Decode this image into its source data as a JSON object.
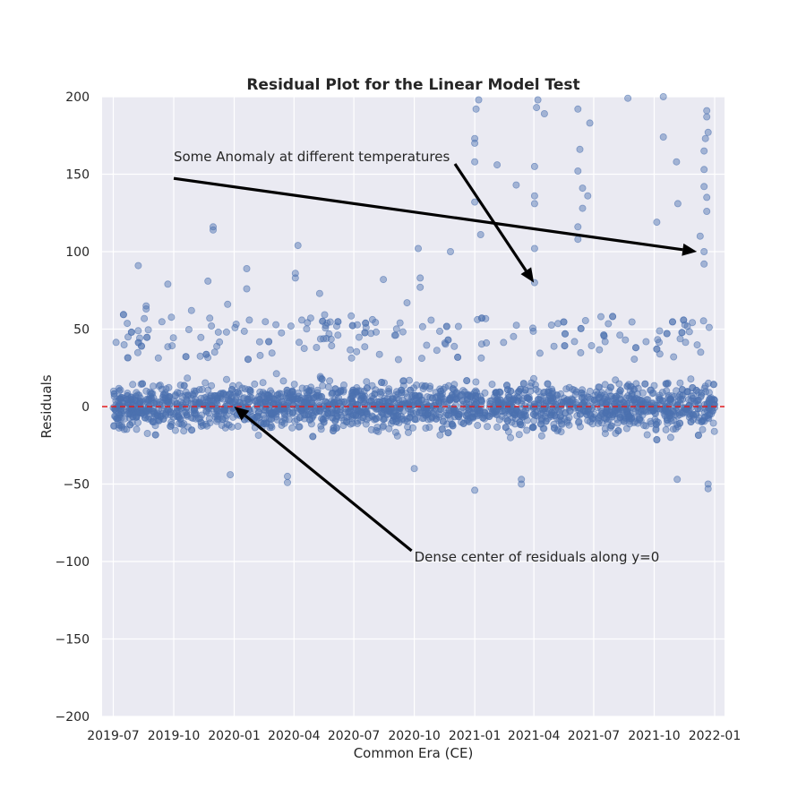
{
  "chart_data": {
    "type": "scatter",
    "title": "Residual Plot for the Linear Model Test",
    "xlabel": "Common Era (CE)",
    "ylabel": "Residuals",
    "xlim": [
      "2019-06-14",
      "2022-01-16"
    ],
    "ylim": [
      -200,
      200
    ],
    "x_ticks": [
      "2019-07",
      "2019-10",
      "2020-01",
      "2020-04",
      "2020-07",
      "2020-10",
      "2021-01",
      "2021-04",
      "2021-07",
      "2021-10",
      "2022-01"
    ],
    "y_ticks": [
      200,
      150,
      100,
      50,
      0,
      -50,
      -100,
      -150,
      -200
    ],
    "grid": true,
    "reference_line": {
      "y": 0,
      "style": "dashed",
      "color": "#e31a1c"
    },
    "series": [
      {
        "marker_color": "#4c72b0",
        "marker_alpha": 0.45,
        "x_range": [
          "2019-07-01",
          "2022-01-01"
        ],
        "typical_band": [
          -30,
          30
        ],
        "points": [
          [
            "2019-08-08",
            91
          ],
          [
            "2019-08-20",
            65
          ],
          [
            "2019-08-20",
            63
          ],
          [
            "2019-09-22",
            79
          ],
          [
            "2019-10-28",
            62
          ],
          [
            "2019-11-22",
            81
          ],
          [
            "2019-11-30",
            116
          ],
          [
            "2019-11-30",
            114
          ],
          [
            "2019-12-22",
            66
          ],
          [
            "2020-01-20",
            89
          ],
          [
            "2020-01-20",
            76
          ],
          [
            "2020-04-07",
            104
          ],
          [
            "2020-04-03",
            86
          ],
          [
            "2020-04-03",
            83
          ],
          [
            "2020-05-10",
            73
          ],
          [
            "2020-08-15",
            82
          ],
          [
            "2020-09-20",
            67
          ],
          [
            "2020-10-07",
            102
          ],
          [
            "2020-10-10",
            83
          ],
          [
            "2020-10-10",
            77
          ],
          [
            "2020-11-25",
            100
          ],
          [
            "2021-01-07",
            198
          ],
          [
            "2021-01-03",
            192
          ],
          [
            "2021-01-01",
            173
          ],
          [
            "2021-01-01",
            170
          ],
          [
            "2021-01-01",
            158
          ],
          [
            "2021-02-04",
            156
          ],
          [
            "2021-01-01",
            132
          ],
          [
            "2021-01-10",
            111
          ],
          [
            "2021-03-05",
            143
          ],
          [
            "2021-04-07",
            198
          ],
          [
            "2021-04-05",
            193
          ],
          [
            "2021-04-17",
            189
          ],
          [
            "2021-04-02",
            155
          ],
          [
            "2021-04-02",
            136
          ],
          [
            "2021-04-02",
            131
          ],
          [
            "2021-04-02",
            102
          ],
          [
            "2021-04-02",
            80
          ],
          [
            "2021-06-07",
            192
          ],
          [
            "2021-06-10",
            166
          ],
          [
            "2021-06-25",
            183
          ],
          [
            "2021-06-07",
            152
          ],
          [
            "2021-06-14",
            141
          ],
          [
            "2021-06-14",
            128
          ],
          [
            "2021-06-22",
            136
          ],
          [
            "2021-06-07",
            116
          ],
          [
            "2021-06-07",
            108
          ],
          [
            "2021-08-22",
            199
          ],
          [
            "2021-10-15",
            200
          ],
          [
            "2021-10-15",
            174
          ],
          [
            "2021-11-04",
            158
          ],
          [
            "2021-10-05",
            119
          ],
          [
            "2021-11-06",
            131
          ],
          [
            "2021-12-20",
            191
          ],
          [
            "2021-12-20",
            187
          ],
          [
            "2021-12-22",
            177
          ],
          [
            "2021-12-18",
            173
          ],
          [
            "2021-12-16",
            165
          ],
          [
            "2021-12-16",
            153
          ],
          [
            "2021-12-16",
            142
          ],
          [
            "2021-12-20",
            135
          ],
          [
            "2021-12-20",
            126
          ],
          [
            "2021-12-10",
            110
          ],
          [
            "2021-12-16",
            100
          ],
          [
            "2021-12-16",
            92
          ],
          [
            "2020-03-22",
            -45
          ],
          [
            "2020-03-22",
            -49
          ],
          [
            "2021-01-01",
            -54
          ],
          [
            "2021-03-13",
            -50
          ],
          [
            "2021-03-13",
            -47
          ],
          [
            "2021-12-22",
            -53
          ],
          [
            "2021-12-22",
            -50
          ],
          [
            "2019-12-26",
            -44
          ],
          [
            "2020-10-01",
            -40
          ],
          [
            "2021-11-05",
            -47
          ]
        ]
      }
    ],
    "annotations": [
      {
        "text": "Some Anomaly at different temperatures",
        "text_at": [
          "2019-10-01",
          160
        ],
        "arrows_to": [
          [
            "2021-12-05",
            100
          ],
          [
            "2021-04-01",
            80
          ]
        ]
      },
      {
        "text": "Dense center of residuals along y=0",
        "text_at": [
          "2020-10-01",
          -100
        ],
        "arrows_to": [
          [
            "2020-01-01",
            0
          ]
        ]
      }
    ]
  }
}
